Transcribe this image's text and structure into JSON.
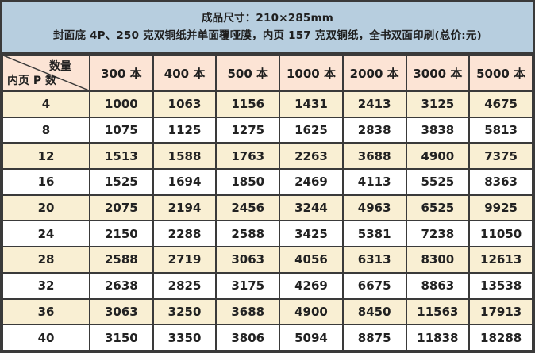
{
  "title": {
    "line1": "成品尺寸：210×285mm",
    "line2": "封面底 4P、250 克双铜纸并单面覆哑膜，内页 157 克双铜纸，全书双面印刷(总价:元)"
  },
  "table": {
    "corner": {
      "top_right": "数量",
      "bottom_left": "内页 P 数"
    },
    "columns": [
      "300 本",
      "400 本",
      "500 本",
      "1000 本",
      "2000 本",
      "3000 本",
      "5000 本"
    ],
    "rows": [
      {
        "pages": "4",
        "values": [
          "1000",
          "1063",
          "1156",
          "1431",
          "2413",
          "3125",
          "4675"
        ]
      },
      {
        "pages": "8",
        "values": [
          "1075",
          "1125",
          "1275",
          "1625",
          "2838",
          "3838",
          "5813"
        ]
      },
      {
        "pages": "12",
        "values": [
          "1513",
          "1588",
          "1763",
          "2263",
          "3688",
          "4900",
          "7375"
        ]
      },
      {
        "pages": "16",
        "values": [
          "1525",
          "1694",
          "1850",
          "2469",
          "4113",
          "5525",
          "8363"
        ]
      },
      {
        "pages": "20",
        "values": [
          "2075",
          "2194",
          "2456",
          "3244",
          "4963",
          "6525",
          "9925"
        ]
      },
      {
        "pages": "24",
        "values": [
          "2150",
          "2288",
          "2588",
          "3425",
          "5381",
          "7238",
          "11050"
        ]
      },
      {
        "pages": "28",
        "values": [
          "2588",
          "2719",
          "3063",
          "4056",
          "6313",
          "8300",
          "12613"
        ]
      },
      {
        "pages": "32",
        "values": [
          "2638",
          "2825",
          "3175",
          "4269",
          "6675",
          "8863",
          "13538"
        ]
      },
      {
        "pages": "36",
        "values": [
          "3063",
          "3250",
          "3688",
          "4900",
          "8450",
          "11563",
          "17913"
        ]
      },
      {
        "pages": "40",
        "values": [
          "3150",
          "3350",
          "3806",
          "5094",
          "8875",
          "11838",
          "18288"
        ]
      }
    ]
  },
  "colors": {
    "border-dark": "#3a3a3a",
    "header-blue": "#b7cedf",
    "header-peach": "#fce4d5",
    "row-cream": "#f9efd3",
    "row-white": "#ffffff",
    "text-dark": "#1f1f1f"
  }
}
